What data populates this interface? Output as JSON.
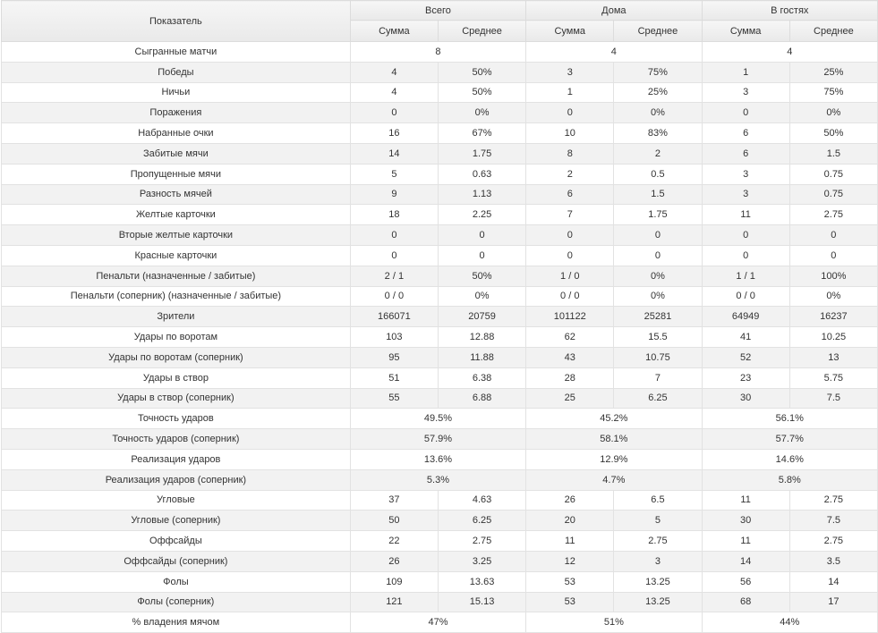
{
  "header": {
    "indicator": "Показатель",
    "groups": [
      "Всего",
      "Дома",
      "В гостях"
    ],
    "sum": "Сумма",
    "avg": "Среднее"
  },
  "rows": [
    {
      "label": "Сыгранные матчи",
      "merged": true,
      "values": [
        "8",
        "4",
        "4"
      ]
    },
    {
      "label": "Победы",
      "merged": false,
      "values": [
        "4",
        "50%",
        "3",
        "75%",
        "1",
        "25%"
      ]
    },
    {
      "label": "Ничьи",
      "merged": false,
      "values": [
        "4",
        "50%",
        "1",
        "25%",
        "3",
        "75%"
      ]
    },
    {
      "label": "Поражения",
      "merged": false,
      "values": [
        "0",
        "0%",
        "0",
        "0%",
        "0",
        "0%"
      ]
    },
    {
      "label": "Набранные очки",
      "merged": false,
      "values": [
        "16",
        "67%",
        "10",
        "83%",
        "6",
        "50%"
      ]
    },
    {
      "label": "Забитые мячи",
      "merged": false,
      "values": [
        "14",
        "1.75",
        "8",
        "2",
        "6",
        "1.5"
      ]
    },
    {
      "label": "Пропущенные мячи",
      "merged": false,
      "values": [
        "5",
        "0.63",
        "2",
        "0.5",
        "3",
        "0.75"
      ]
    },
    {
      "label": "Разность мячей",
      "merged": false,
      "values": [
        "9",
        "1.13",
        "6",
        "1.5",
        "3",
        "0.75"
      ]
    },
    {
      "label": "Желтые карточки",
      "merged": false,
      "values": [
        "18",
        "2.25",
        "7",
        "1.75",
        "11",
        "2.75"
      ]
    },
    {
      "label": "Вторые желтые карточки",
      "merged": false,
      "values": [
        "0",
        "0",
        "0",
        "0",
        "0",
        "0"
      ]
    },
    {
      "label": "Красные карточки",
      "merged": false,
      "values": [
        "0",
        "0",
        "0",
        "0",
        "0",
        "0"
      ]
    },
    {
      "label": "Пенальти (назначенные / забитые)",
      "merged": false,
      "values": [
        "2 / 1",
        "50%",
        "1 / 0",
        "0%",
        "1 / 1",
        "100%"
      ]
    },
    {
      "label": "Пенальти (соперник) (назначенные / забитые)",
      "merged": false,
      "values": [
        "0 / 0",
        "0%",
        "0 / 0",
        "0%",
        "0 / 0",
        "0%"
      ]
    },
    {
      "label": "Зрители",
      "merged": false,
      "values": [
        "166071",
        "20759",
        "101122",
        "25281",
        "64949",
        "16237"
      ]
    },
    {
      "label": "Удары по воротам",
      "merged": false,
      "values": [
        "103",
        "12.88",
        "62",
        "15.5",
        "41",
        "10.25"
      ]
    },
    {
      "label": "Удары по воротам (соперник)",
      "merged": false,
      "values": [
        "95",
        "11.88",
        "43",
        "10.75",
        "52",
        "13"
      ]
    },
    {
      "label": "Удары в створ",
      "merged": false,
      "values": [
        "51",
        "6.38",
        "28",
        "7",
        "23",
        "5.75"
      ]
    },
    {
      "label": "Удары в створ (соперник)",
      "merged": false,
      "values": [
        "55",
        "6.88",
        "25",
        "6.25",
        "30",
        "7.5"
      ]
    },
    {
      "label": "Точность ударов",
      "merged": true,
      "values": [
        "49.5%",
        "45.2%",
        "56.1%"
      ]
    },
    {
      "label": "Точность ударов (соперник)",
      "merged": true,
      "values": [
        "57.9%",
        "58.1%",
        "57.7%"
      ]
    },
    {
      "label": "Реализация ударов",
      "merged": true,
      "values": [
        "13.6%",
        "12.9%",
        "14.6%"
      ]
    },
    {
      "label": "Реализация ударов (соперник)",
      "merged": true,
      "values": [
        "5.3%",
        "4.7%",
        "5.8%"
      ]
    },
    {
      "label": "Угловые",
      "merged": false,
      "values": [
        "37",
        "4.63",
        "26",
        "6.5",
        "11",
        "2.75"
      ]
    },
    {
      "label": "Угловые (соперник)",
      "merged": false,
      "values": [
        "50",
        "6.25",
        "20",
        "5",
        "30",
        "7.5"
      ]
    },
    {
      "label": "Оффсайды",
      "merged": false,
      "values": [
        "22",
        "2.75",
        "11",
        "2.75",
        "11",
        "2.75"
      ]
    },
    {
      "label": "Оффсайды (соперник)",
      "merged": false,
      "values": [
        "26",
        "3.25",
        "12",
        "3",
        "14",
        "3.5"
      ]
    },
    {
      "label": "Фолы",
      "merged": false,
      "values": [
        "109",
        "13.63",
        "53",
        "13.25",
        "56",
        "14"
      ]
    },
    {
      "label": "Фолы (соперник)",
      "merged": false,
      "values": [
        "121",
        "15.13",
        "53",
        "13.25",
        "68",
        "17"
      ]
    },
    {
      "label": "% владения мячом",
      "merged": true,
      "values": [
        "47%",
        "51%",
        "44%"
      ]
    }
  ]
}
